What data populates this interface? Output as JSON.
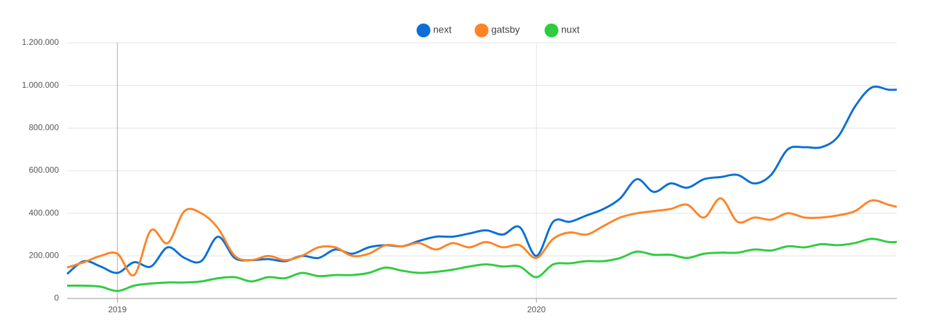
{
  "chart_data": {
    "type": "line",
    "x": [
      2018.88,
      2018.92,
      2018.96,
      2019.0,
      2019.04,
      2019.08,
      2019.12,
      2019.16,
      2019.2,
      2019.24,
      2019.28,
      2019.32,
      2019.36,
      2019.4,
      2019.44,
      2019.48,
      2019.52,
      2019.56,
      2019.6,
      2019.64,
      2019.68,
      2019.72,
      2019.76,
      2019.8,
      2019.84,
      2019.88,
      2019.92,
      2019.96,
      2020.0,
      2020.04,
      2020.08,
      2020.12,
      2020.16,
      2020.2,
      2020.24,
      2020.28,
      2020.32,
      2020.36,
      2020.4,
      2020.44,
      2020.48,
      2020.52,
      2020.56,
      2020.6,
      2020.64,
      2020.68,
      2020.72,
      2020.76,
      2020.8,
      2020.84,
      2020.86
    ],
    "series": [
      {
        "name": "next",
        "color": "#0a6fd6",
        "values": [
          115000,
          175000,
          150000,
          120000,
          170000,
          150000,
          240000,
          190000,
          175000,
          290000,
          190000,
          180000,
          185000,
          175000,
          200000,
          190000,
          230000,
          210000,
          240000,
          250000,
          245000,
          270000,
          290000,
          290000,
          305000,
          320000,
          300000,
          335000,
          200000,
          360000,
          360000,
          390000,
          420000,
          470000,
          560000,
          500000,
          540000,
          520000,
          560000,
          570000,
          580000,
          540000,
          580000,
          700000,
          710000,
          710000,
          760000,
          900000,
          990000,
          980000,
          980000
        ]
      },
      {
        "name": "gatsby",
        "color": "#ff8426",
        "values": [
          145000,
          170000,
          200000,
          210000,
          110000,
          320000,
          260000,
          410000,
          400000,
          330000,
          200000,
          180000,
          200000,
          180000,
          200000,
          240000,
          240000,
          200000,
          210000,
          250000,
          245000,
          260000,
          230000,
          260000,
          240000,
          265000,
          240000,
          250000,
          190000,
          280000,
          310000,
          300000,
          340000,
          380000,
          400000,
          410000,
          420000,
          440000,
          380000,
          470000,
          360000,
          380000,
          370000,
          400000,
          380000,
          380000,
          390000,
          410000,
          460000,
          440000,
          430000
        ]
      },
      {
        "name": "nuxt",
        "color": "#2ecc40",
        "values": [
          60000,
          60000,
          55000,
          35000,
          60000,
          70000,
          75000,
          75000,
          80000,
          95000,
          100000,
          80000,
          100000,
          95000,
          120000,
          105000,
          110000,
          110000,
          120000,
          145000,
          130000,
          120000,
          125000,
          135000,
          150000,
          160000,
          150000,
          150000,
          100000,
          160000,
          165000,
          175000,
          175000,
          190000,
          220000,
          205000,
          205000,
          190000,
          210000,
          215000,
          215000,
          230000,
          225000,
          245000,
          240000,
          255000,
          250000,
          260000,
          280000,
          265000,
          265000
        ]
      }
    ],
    "xlim": [
      2018.88,
      2020.86
    ],
    "xticks": [
      2019,
      2020
    ],
    "ylim": [
      0,
      1200000
    ],
    "yticks": [
      0,
      {
        "value": 200000,
        "label": "200.000"
      },
      {
        "value": 400000,
        "label": "400.000"
      },
      {
        "value": 600000,
        "label": "600.000"
      },
      {
        "value": 800000,
        "label": "800.000"
      },
      {
        "value": 1000000,
        "label": "1.000.000"
      },
      {
        "value": 1200000,
        "label": "1.200.000"
      }
    ],
    "grid": true,
    "legend": "top"
  }
}
